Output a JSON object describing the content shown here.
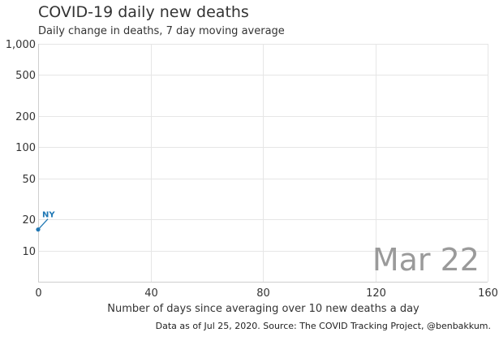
{
  "title": "COVID-19 daily new deaths",
  "subtitle": "Daily change in deaths, 7 day moving average",
  "date_overlay": "Mar 22",
  "source": "Data as of Jul 25, 2020. Source: The COVID Tracking Project, @benbakkum.",
  "colors": {
    "series": "#1f77b4",
    "grid": "#e6e6e6",
    "date": "#9a9a9a"
  },
  "chart_data": {
    "type": "line",
    "xlabel": "Number of days since averaging over 10 new deaths a day",
    "ylabel": "",
    "xlim": [
      0,
      160
    ],
    "ylim": [
      5,
      1000
    ],
    "yscale": "log",
    "x_ticks": [
      0,
      40,
      80,
      120,
      160
    ],
    "x_tick_labels": [
      "0",
      "40",
      "80",
      "120",
      "160"
    ],
    "y_ticks": [
      10,
      20,
      50,
      100,
      200,
      500,
      1000
    ],
    "y_tick_labels": [
      "10",
      "20",
      "50",
      "100",
      "200",
      "500",
      "1,000"
    ],
    "grid": true,
    "series": [
      {
        "name": "NY",
        "x": [
          0
        ],
        "y": [
          16
        ]
      }
    ]
  }
}
